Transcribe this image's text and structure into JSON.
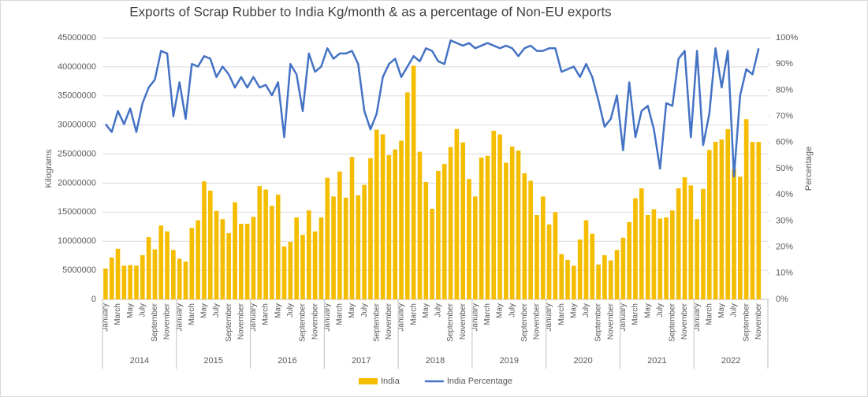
{
  "chart_data": {
    "type": "bar-line",
    "title": "Exports of Scrap Rubber to India Kg/month & as a percentage of Non-EU exports",
    "y_label": "Kilograms",
    "y2_label": "Percentage",
    "categories": [
      "January",
      null,
      "March",
      null,
      "May",
      null,
      "July",
      null,
      "September",
      null,
      "November",
      null,
      "January",
      null,
      "March",
      null,
      "May",
      null,
      "July",
      null,
      "September",
      null,
      "November",
      null,
      "January",
      null,
      "March",
      null,
      "May",
      null,
      "July",
      null,
      "September",
      null,
      "November",
      null,
      "January",
      null,
      "March",
      null,
      "May",
      null,
      "July",
      null,
      "September",
      null,
      "November",
      null,
      "January",
      null,
      "March",
      null,
      "May",
      null,
      "July",
      null,
      "September",
      null,
      "November",
      null,
      "January",
      null,
      "March",
      null,
      "May",
      null,
      "July",
      null,
      "September",
      null,
      "November",
      null,
      "January",
      null,
      "March",
      null,
      "May",
      null,
      "July",
      null,
      "September",
      null,
      "November",
      null,
      "January",
      null,
      "March",
      null,
      "May",
      null,
      "July",
      null,
      "September",
      null,
      "November",
      null,
      "January",
      null,
      "March",
      null,
      "May",
      null,
      "July",
      null,
      "September",
      null,
      "November",
      null
    ],
    "years": [
      "2014",
      "2015",
      "2016",
      "2017",
      "2018",
      "2019",
      "2020",
      "2021",
      "2022"
    ],
    "series": [
      {
        "name": "India",
        "kind": "bar",
        "color": "#f5bd00",
        "values": [
          5300000,
          7200000,
          8700000,
          5800000,
          5900000,
          5800000,
          7600000,
          10700000,
          8600000,
          12700000,
          11700000,
          8500000,
          7000000,
          6500000,
          12300000,
          13600000,
          20300000,
          18700000,
          15200000,
          13800000,
          11400000,
          16700000,
          13000000,
          13000000,
          14200000,
          19500000,
          18900000,
          16100000,
          18000000,
          9100000,
          9900000,
          14100000,
          11100000,
          15300000,
          11700000,
          14100000,
          20900000,
          17700000,
          22000000,
          17500000,
          24500000,
          17900000,
          19700000,
          24300000,
          29200000,
          28400000,
          24800000,
          25800000,
          27300000,
          35600000,
          40200000,
          25400000,
          20200000,
          15600000,
          22100000,
          23300000,
          26200000,
          29300000,
          27000000,
          20700000,
          17700000,
          24400000,
          24700000,
          29000000,
          28400000,
          23500000,
          26300000,
          25600000,
          21700000,
          20400000,
          14500000,
          17700000,
          12900000,
          15000000,
          7800000,
          6800000,
          5800000,
          10300000,
          13600000,
          11300000,
          6000000,
          7600000,
          6700000,
          8500000,
          10600000,
          13300000,
          17400000,
          19100000,
          14500000,
          15500000,
          13900000,
          14100000,
          15300000,
          19100000,
          21000000,
          19600000,
          13800000,
          19000000,
          25700000,
          27100000,
          27500000,
          29300000,
          22400000,
          21100000,
          31000000,
          27100000,
          27100000,
          null
        ]
      },
      {
        "name": "India Percentage",
        "kind": "line",
        "axis": "y2",
        "color": "#4472c4",
        "values": [
          67,
          64,
          72,
          67,
          73,
          64,
          75,
          81,
          84,
          95,
          94,
          70,
          83,
          69,
          90,
          89,
          93,
          92,
          85,
          89,
          86,
          81,
          85,
          81,
          85,
          81,
          82,
          78,
          83,
          62,
          90,
          86,
          72,
          94,
          87,
          89,
          96,
          92,
          94,
          94,
          95,
          90,
          72,
          65,
          71,
          85,
          90,
          92,
          85,
          89,
          93,
          91,
          96,
          95,
          91,
          90,
          99,
          98,
          97,
          98,
          96,
          97,
          98,
          97,
          96,
          97,
          96,
          93,
          96,
          97,
          95,
          95,
          96,
          96,
          87,
          88,
          89,
          85,
          90,
          85,
          76,
          66,
          69,
          78,
          57,
          83,
          62,
          72,
          74,
          65,
          50,
          75,
          74,
          92,
          95,
          62,
          95,
          59,
          71,
          96,
          81,
          95,
          47,
          78,
          88,
          86,
          96,
          null
        ]
      }
    ],
    "ylim": [
      0,
      45000000
    ],
    "yticks": [
      0,
      5000000,
      10000000,
      15000000,
      20000000,
      25000000,
      30000000,
      35000000,
      40000000,
      45000000
    ],
    "y2lim": [
      0,
      100
    ],
    "y2ticks": [
      {
        "value": 0,
        "label": "0%"
      },
      {
        "value": 10,
        "label": "10%"
      },
      {
        "value": 20,
        "label": "20%"
      },
      {
        "value": 30,
        "label": "30%"
      },
      {
        "value": 40,
        "label": "40%"
      },
      {
        "value": 50,
        "label": "50%"
      },
      {
        "value": 60,
        "label": "60%"
      },
      {
        "value": 70,
        "label": "70%"
      },
      {
        "value": 80,
        "label": "80%"
      },
      {
        "value": 90,
        "label": "90%"
      },
      {
        "value": 100,
        "label": "100%"
      }
    ],
    "grid": true,
    "legend": "bottom"
  }
}
